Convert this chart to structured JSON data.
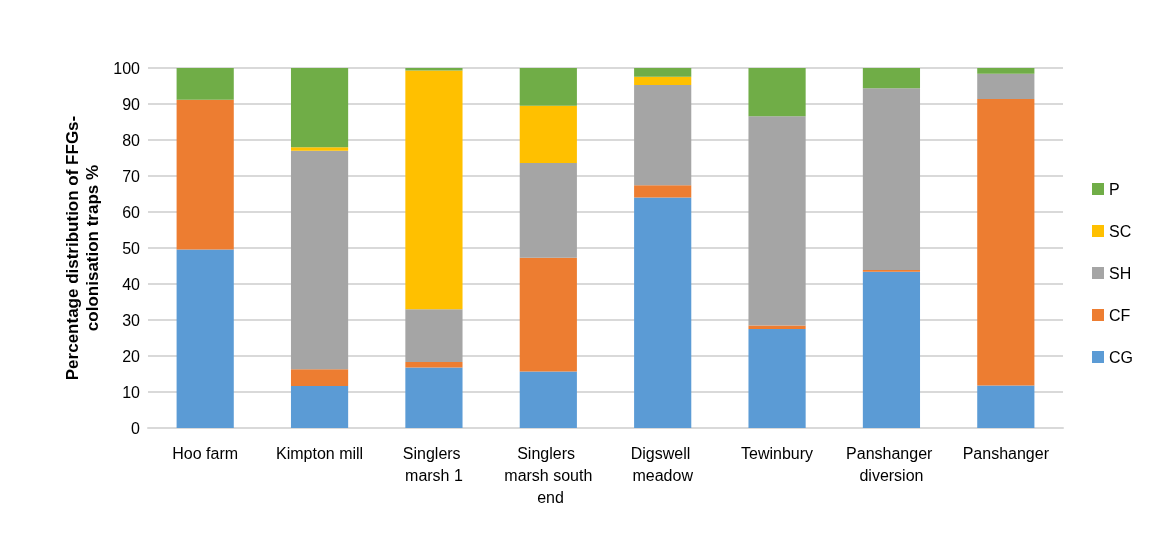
{
  "chart_data": {
    "type": "bar",
    "stacked": true,
    "ylabel": "Percentage distribution of FFGs-colonisation traps %",
    "categories": [
      "Hoo farm",
      "Kimpton mill",
      "Singlers marsh 1",
      "Singlers marsh south end",
      "Digswell meadow",
      "Tewinbury",
      "Panshanger diversion",
      "Panshanger"
    ],
    "series": [
      {
        "name": "CG",
        "color": "#5b9bd5",
        "values": [
          49.6,
          11.7,
          16.8,
          15.7,
          64.0,
          27.5,
          43.4,
          11.8
        ]
      },
      {
        "name": "CF",
        "color": "#ed7d31",
        "values": [
          41.6,
          4.6,
          1.5,
          31.6,
          3.4,
          1.0,
          0.5,
          79.6
        ]
      },
      {
        "name": "SH",
        "color": "#a5a5a5",
        "values": [
          0,
          60.7,
          14.7,
          26.3,
          27.9,
          58.1,
          50.5,
          7.0
        ]
      },
      {
        "name": "SC",
        "color": "#ffc000",
        "values": [
          0,
          1.0,
          66.3,
          15.9,
          2.3,
          0,
          0,
          0
        ]
      },
      {
        "name": "P",
        "color": "#70ad47",
        "values": [
          8.8,
          22.0,
          0.7,
          10.5,
          2.4,
          13.4,
          5.6,
          1.6
        ]
      }
    ],
    "ylim": [
      0,
      100
    ],
    "yticks": [
      0,
      10,
      20,
      30,
      40,
      50,
      60,
      70,
      80,
      90,
      100
    ],
    "grid": "y",
    "legend": "right"
  }
}
